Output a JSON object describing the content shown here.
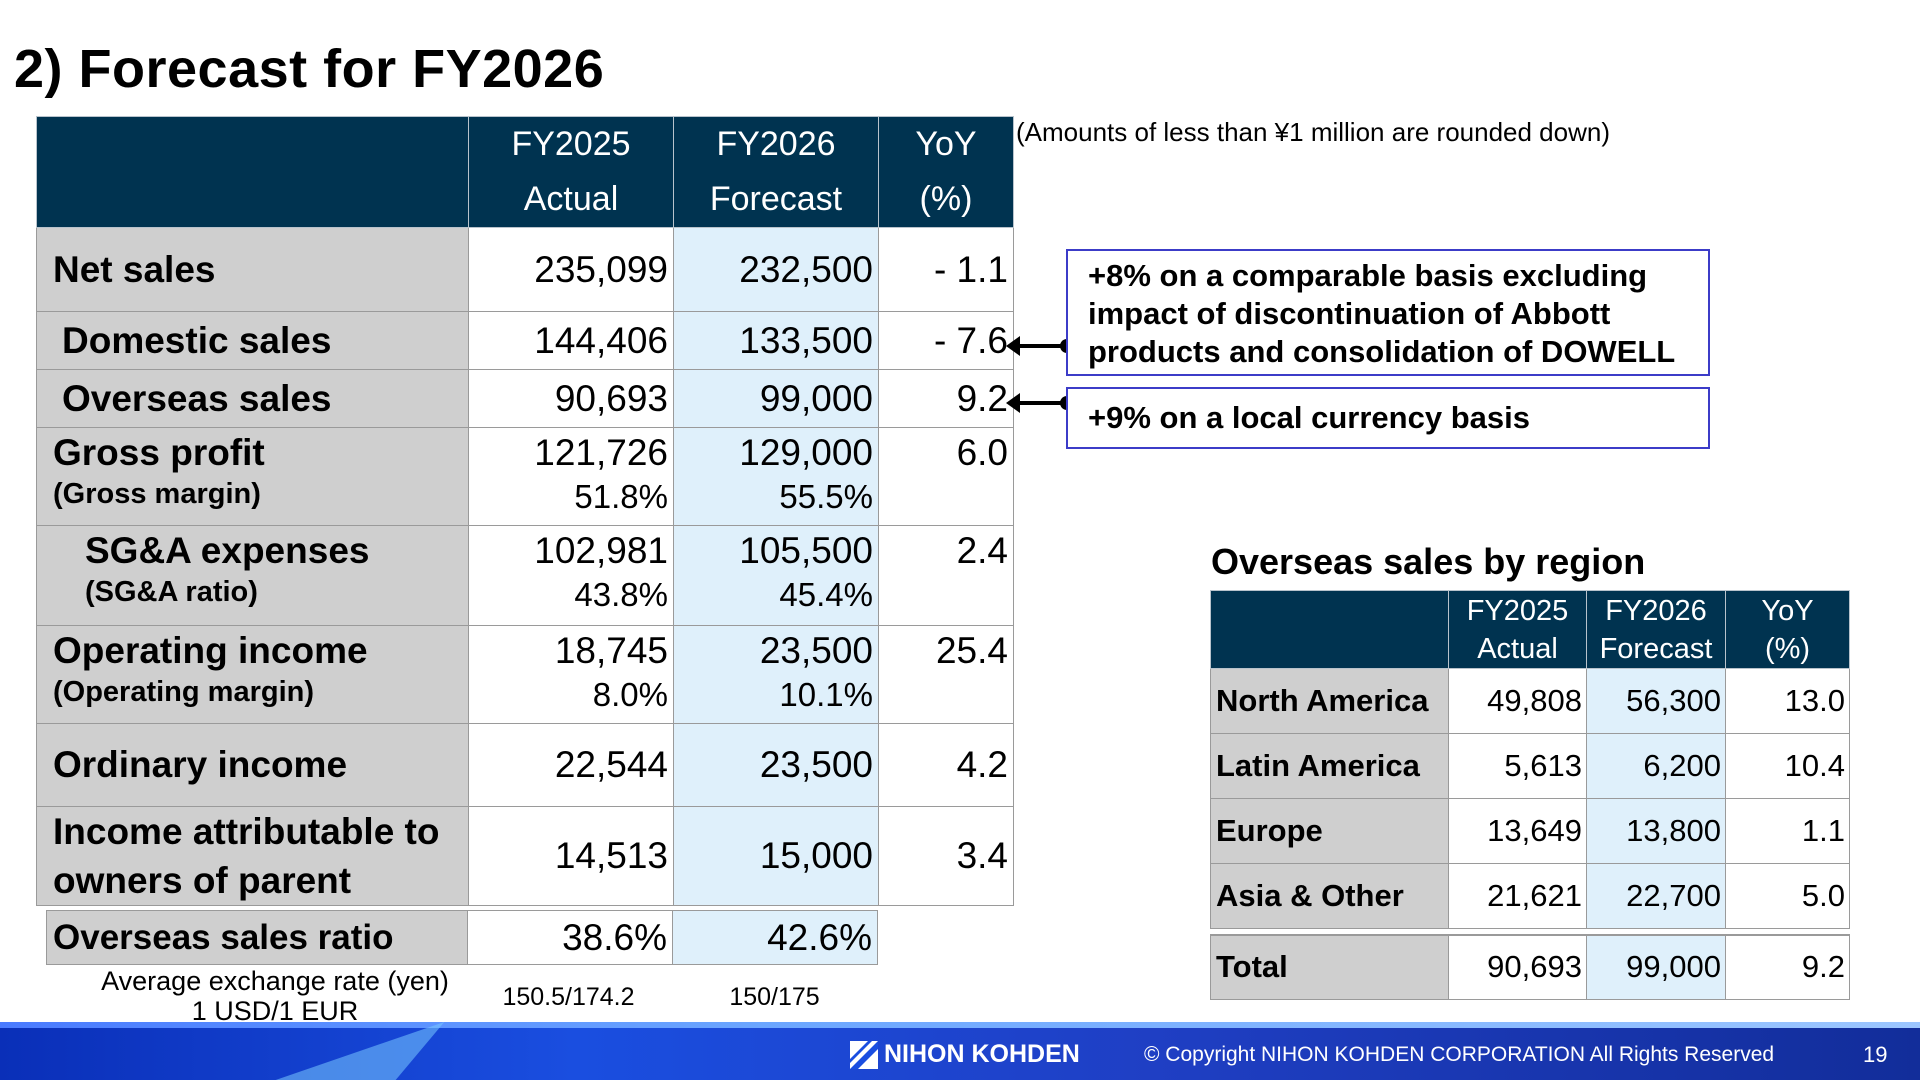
{
  "title": "2) Forecast for FY2026",
  "note": "(Amounts of less than ¥1 million are rounded down)",
  "main_table": {
    "headers": [
      {
        "line1": "FY2025",
        "line2": "Actual"
      },
      {
        "line1": "FY2026",
        "line2": "Forecast"
      },
      {
        "line1": "YoY",
        "line2": "(%)"
      }
    ],
    "rows": {
      "net_sales": {
        "label": "Net sales",
        "fy2025": "235,099",
        "fy2026": "232,500",
        "yoy": "- 1.1"
      },
      "domestic_sales": {
        "label": "Domestic sales",
        "fy2025": "144,406",
        "fy2026": "133,500",
        "yoy": "- 7.6"
      },
      "overseas_sales": {
        "label": "Overseas sales",
        "fy2025": "90,693",
        "fy2026": "99,000",
        "yoy": "9.2"
      },
      "gross_profit": {
        "label": "Gross profit",
        "sublabel": "(Gross margin)",
        "fy2025": "121,726",
        "fy2025_sub": "51.8%",
        "fy2026": "129,000",
        "fy2026_sub": "55.5%",
        "yoy": "6.0"
      },
      "sga": {
        "label": "SG&A expenses",
        "sublabel": "(SG&A ratio)",
        "fy2025": "102,981",
        "fy2025_sub": "43.8%",
        "fy2026": "105,500",
        "fy2026_sub": "45.4%",
        "yoy": "2.4"
      },
      "operating_income": {
        "label": "Operating income",
        "sublabel": "(Operating margin)",
        "fy2025": "18,745",
        "fy2025_sub": "8.0%",
        "fy2026": "23,500",
        "fy2026_sub": "10.1%",
        "yoy": "25.4"
      },
      "ordinary_income": {
        "label": "Ordinary income",
        "fy2025": "22,544",
        "fy2026": "23,500",
        "yoy": "4.2"
      },
      "income_parent": {
        "label_line1": "Income attributable to",
        "label_line2": "owners of parent",
        "fy2025": "14,513",
        "fy2026": "15,000",
        "yoy": "3.4"
      }
    }
  },
  "ratio": {
    "label": "Overseas sales ratio",
    "fy2025": "38.6%",
    "fy2026": "42.6%"
  },
  "fx": {
    "label_line1": "Average exchange rate (yen)",
    "label_line2": "1 USD/1 EUR",
    "fy2025": "150.5/174.2",
    "fy2026": "150/175"
  },
  "callouts": {
    "domestic": "+8% on a comparable basis excluding impact of discontinuation of Abbott products and consolidation of DOWELL",
    "overseas": "+9% on a local currency basis"
  },
  "region": {
    "title": "Overseas sales by region",
    "headers": [
      {
        "line1": "FY2025",
        "line2": "Actual"
      },
      {
        "line1": "FY2026",
        "line2": "Forecast"
      },
      {
        "line1": "YoY",
        "line2": "(%)"
      }
    ],
    "rows": [
      {
        "label": "North America",
        "fy2025": "49,808",
        "fy2026": "56,300",
        "yoy": "13.0"
      },
      {
        "label": "Latin America",
        "fy2025": "5,613",
        "fy2026": "6,200",
        "yoy": "10.4"
      },
      {
        "label": "Europe",
        "fy2025": "13,649",
        "fy2026": "13,800",
        "yoy": "1.1"
      },
      {
        "label": "Asia & Other",
        "fy2025": "21,621",
        "fy2026": "22,700",
        "yoy": "5.0"
      }
    ],
    "total": {
      "label": "Total",
      "fy2025": "90,693",
      "fy2026": "99,000",
      "yoy": "9.2"
    }
  },
  "footer": {
    "logo_text": "NIHON KOHDEN",
    "copyright": "© Copyright  NIHON KOHDEN CORPORATION  All Rights Reserved",
    "page_number": "19"
  },
  "colors": {
    "header_bg": "#003350",
    "label_bg": "#cfcfcf",
    "forecast_bg": "#dff0fb",
    "callout_border": "#3c3cc8",
    "footer_bg": "#1a4ee0"
  }
}
